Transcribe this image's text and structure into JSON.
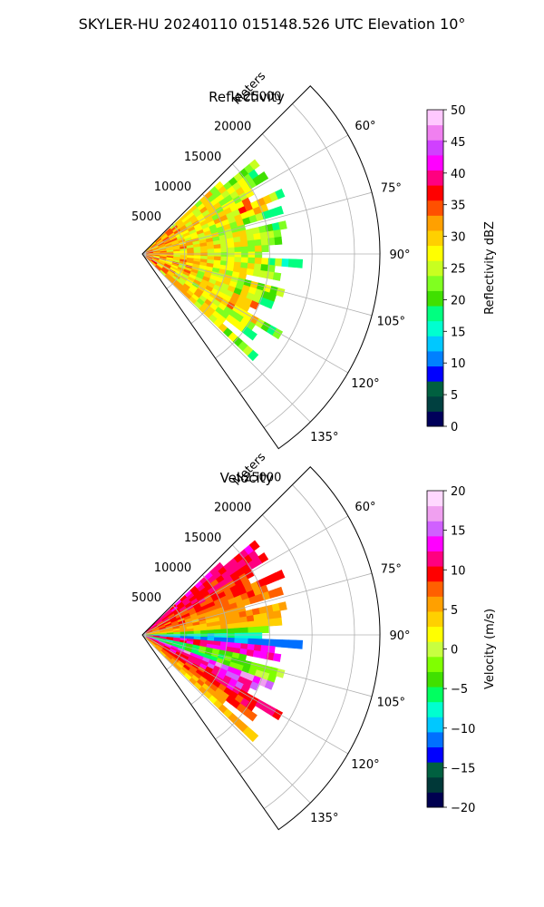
{
  "figure": {
    "title": "SKYLER-HU  20240110  015148.526 UTC Elevation 10°"
  },
  "chart_data": [
    {
      "type": "heatmap",
      "title": "Reflectivity",
      "range_label": "Meters",
      "range_ticks": [
        "5000",
        "10000",
        "15000",
        "20000",
        "25000"
      ],
      "range_tick_values": [
        5000,
        10000,
        15000,
        20000,
        25000
      ],
      "range_max": 28000,
      "azimuth_ticks": [
        "60°",
        "75°",
        "90°",
        "105°",
        "120°",
        "135°"
      ],
      "azimuth_tick_values": [
        60,
        75,
        90,
        105,
        120,
        135
      ],
      "azimuth_range": [
        45,
        145
      ],
      "grid": true,
      "data_extent_m": 19000,
      "colorbar": {
        "label": "Reflectivity dBZ",
        "range": [
          0,
          50
        ],
        "ticks": [
          "0",
          "5",
          "10",
          "15",
          "20",
          "25",
          "30",
          "35",
          "40",
          "45",
          "50"
        ],
        "tick_values": [
          0,
          5,
          10,
          15,
          20,
          25,
          30,
          35,
          40,
          45,
          50
        ],
        "colors": [
          "#00005a",
          "#004040",
          "#006040",
          "#0000ff",
          "#0080ff",
          "#00c8ff",
          "#00ffd0",
          "#00ff80",
          "#40e000",
          "#80ff20",
          "#c8ff20",
          "#ffff00",
          "#ffd000",
          "#ffa000",
          "#ff5000",
          "#ff0000",
          "#ff0080",
          "#ff00ff",
          "#d040ff",
          "#f080f0",
          "#ffc8ff"
        ]
      }
    },
    {
      "type": "heatmap",
      "title": "Velocity",
      "range_label": "Meters",
      "range_ticks": [
        "5000",
        "10000",
        "15000",
        "20000",
        "25000"
      ],
      "range_tick_values": [
        5000,
        10000,
        15000,
        20000,
        25000
      ],
      "range_max": 28000,
      "azimuth_ticks": [
        "60°",
        "75°",
        "90°",
        "105°",
        "120°",
        "135°"
      ],
      "azimuth_tick_values": [
        60,
        75,
        90,
        105,
        120,
        135
      ],
      "azimuth_range": [
        45,
        145
      ],
      "grid": true,
      "data_extent_m": 19000,
      "colorbar": {
        "label": "Velocity (m/s)",
        "range": [
          -20,
          20
        ],
        "ticks": [
          "−20",
          "−15",
          "−10",
          "−5",
          "0",
          "5",
          "10",
          "15",
          "20"
        ],
        "tick_values": [
          -20,
          -15,
          -10,
          -5,
          0,
          5,
          10,
          15,
          20
        ],
        "colors": [
          "#000050",
          "#003838",
          "#006040",
          "#0000ff",
          "#0070ff",
          "#00c8ff",
          "#00ffd0",
          "#00ff60",
          "#40e000",
          "#80ff00",
          "#c8ff40",
          "#ffff00",
          "#ffd000",
          "#ffa000",
          "#ff6000",
          "#ff0000",
          "#ff0080",
          "#ff00ff",
          "#d060ff",
          "#f0a0f0",
          "#ffd8ff"
        ]
      }
    }
  ]
}
